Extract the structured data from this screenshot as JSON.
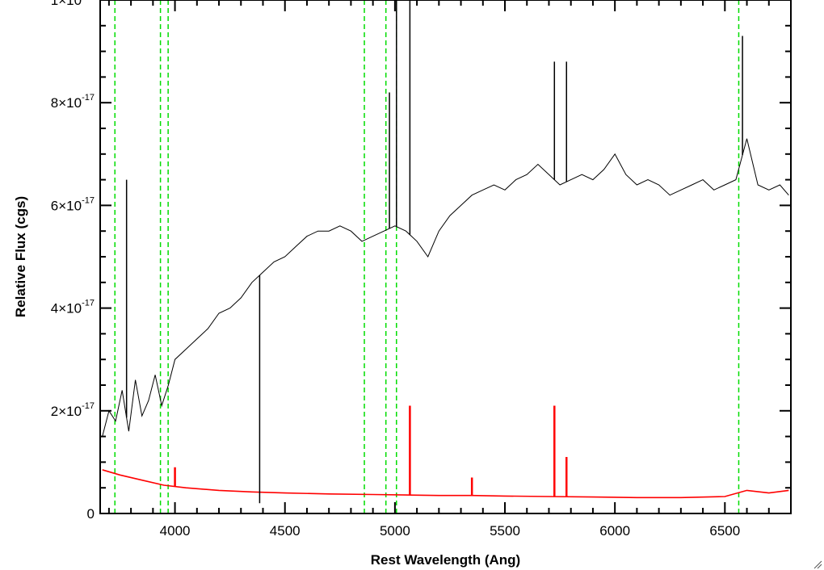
{
  "chart_data": {
    "type": "line",
    "xlabel": "Rest Wavelength (Ang)",
    "ylabel": "Relative Flux (cgs)",
    "xlim": [
      3660,
      6800
    ],
    "ylim": [
      0,
      1e-16
    ],
    "x_ticks": [
      4000,
      4500,
      5000,
      5500,
      6000,
      6500
    ],
    "x_tick_labels": [
      "4000",
      "4500",
      "5000",
      "5500",
      "6000",
      "6500"
    ],
    "y_ticks": [
      {
        "value": 0,
        "label": "0"
      },
      {
        "value": 2e-17,
        "mantissa": "2",
        "times": "×",
        "base": "10",
        "exponent": "-17"
      },
      {
        "value": 4e-17,
        "mantissa": "4",
        "times": "×",
        "base": "10",
        "exponent": "-17"
      },
      {
        "value": 6e-17,
        "mantissa": "6",
        "times": "×",
        "base": "10",
        "exponent": "-17"
      },
      {
        "value": 8e-17,
        "mantissa": "8",
        "times": "×",
        "base": "10",
        "exponent": "-17"
      },
      {
        "value": 1e-16,
        "mantissa": "1",
        "times": "×",
        "base": "10",
        "exponent": "-16"
      }
    ],
    "reference_lines": [
      3727,
      3934,
      3969,
      4861,
      4959,
      5007,
      6563
    ],
    "series": [
      {
        "color": "#000000",
        "x": [
          3670,
          3700,
          3730,
          3760,
          3790,
          3820,
          3850,
          3880,
          3910,
          3940,
          3970,
          4000,
          4050,
          4100,
          4150,
          4200,
          4250,
          4300,
          4350,
          4400,
          4450,
          4500,
          4550,
          4600,
          4650,
          4700,
          4750,
          4800,
          4850,
          4900,
          4950,
          5000,
          5050,
          5100,
          5150,
          5200,
          5250,
          5300,
          5350,
          5400,
          5450,
          5500,
          5550,
          5600,
          5650,
          5700,
          5750,
          5800,
          5850,
          5900,
          5950,
          6000,
          6050,
          6100,
          6150,
          6200,
          6250,
          6300,
          6350,
          6400,
          6450,
          6500,
          6550,
          6600,
          6650,
          6700,
          6750,
          6790
        ],
        "y": [
          1.5e-17,
          2e-17,
          1.8e-17,
          2.4e-17,
          1.6e-17,
          2.6e-17,
          1.9e-17,
          2.2e-17,
          2.7e-17,
          2.1e-17,
          2.5e-17,
          3e-17,
          3.2e-17,
          3.4e-17,
          3.6e-17,
          3.9e-17,
          4e-17,
          4.2e-17,
          4.5e-17,
          4.7e-17,
          4.9e-17,
          5e-17,
          5.2e-17,
          5.4e-17,
          5.5e-17,
          5.5e-17,
          5.6e-17,
          5.5e-17,
          5.3e-17,
          5.4e-17,
          5.5e-17,
          5.6e-17,
          5.5e-17,
          5.3e-17,
          5e-17,
          5.5e-17,
          5.8e-17,
          6e-17,
          6.2e-17,
          6.3e-17,
          6.4e-17,
          6.3e-17,
          6.5e-17,
          6.6e-17,
          6.8e-17,
          6.6e-17,
          6.4e-17,
          6.5e-17,
          6.6e-17,
          6.5e-17,
          6.7e-17,
          7e-17,
          6.6e-17,
          6.4e-17,
          6.5e-17,
          6.4e-17,
          6.2e-17,
          6.3e-17,
          6.4e-17,
          6.5e-17,
          6.3e-17,
          6.4e-17,
          6.5e-17,
          7.3e-17,
          6.4e-17,
          6.3e-17,
          6.4e-17,
          6.2e-17
        ]
      },
      {
        "color": "#ff0000",
        "x": [
          3670,
          3750,
          3850,
          3950,
          4050,
          4200,
          4350,
          4500,
          4700,
          4900,
          5050,
          5200,
          5350,
          5500,
          5700,
          5900,
          6100,
          6300,
          6500,
          6600,
          6700,
          6790
        ],
        "y": [
          8.5e-18,
          7.5e-18,
          6.5e-18,
          5.5e-18,
          5e-18,
          4.5e-18,
          4.2e-18,
          4e-18,
          3.8e-18,
          3.7e-18,
          3.6e-18,
          3.5e-18,
          3.5e-18,
          3.4e-18,
          3.3e-18,
          3.2e-18,
          3.1e-18,
          3.1e-18,
          3.3e-18,
          4.5e-18,
          4e-18,
          4.5e-18
        ]
      }
    ],
    "emission_spikes": [
      {
        "series": 0,
        "x": 5007,
        "y": 1e-16
      },
      {
        "series": 0,
        "x": 5068,
        "y": 1e-16
      },
      {
        "series": 0,
        "x": 5725,
        "y": 8.8e-17
      },
      {
        "series": 0,
        "x": 5780,
        "y": 8.8e-17
      },
      {
        "series": 0,
        "x": 4975,
        "y": 8.2e-17
      },
      {
        "series": 0,
        "x": 6580,
        "y": 9.3e-17
      },
      {
        "series": 0,
        "x": 3780,
        "y": 6.5e-17
      },
      {
        "series": 0,
        "x": 4385,
        "y": 2e-18
      },
      {
        "series": 1,
        "x": 5068,
        "y": 2.1e-17
      },
      {
        "series": 1,
        "x": 5725,
        "y": 2.1e-17
      },
      {
        "series": 1,
        "x": 5780,
        "y": 1.1e-17
      },
      {
        "series": 1,
        "x": 4000,
        "y": 9e-18
      },
      {
        "series": 1,
        "x": 5350,
        "y": 7e-18
      }
    ],
    "grid": false,
    "legend": "none"
  }
}
